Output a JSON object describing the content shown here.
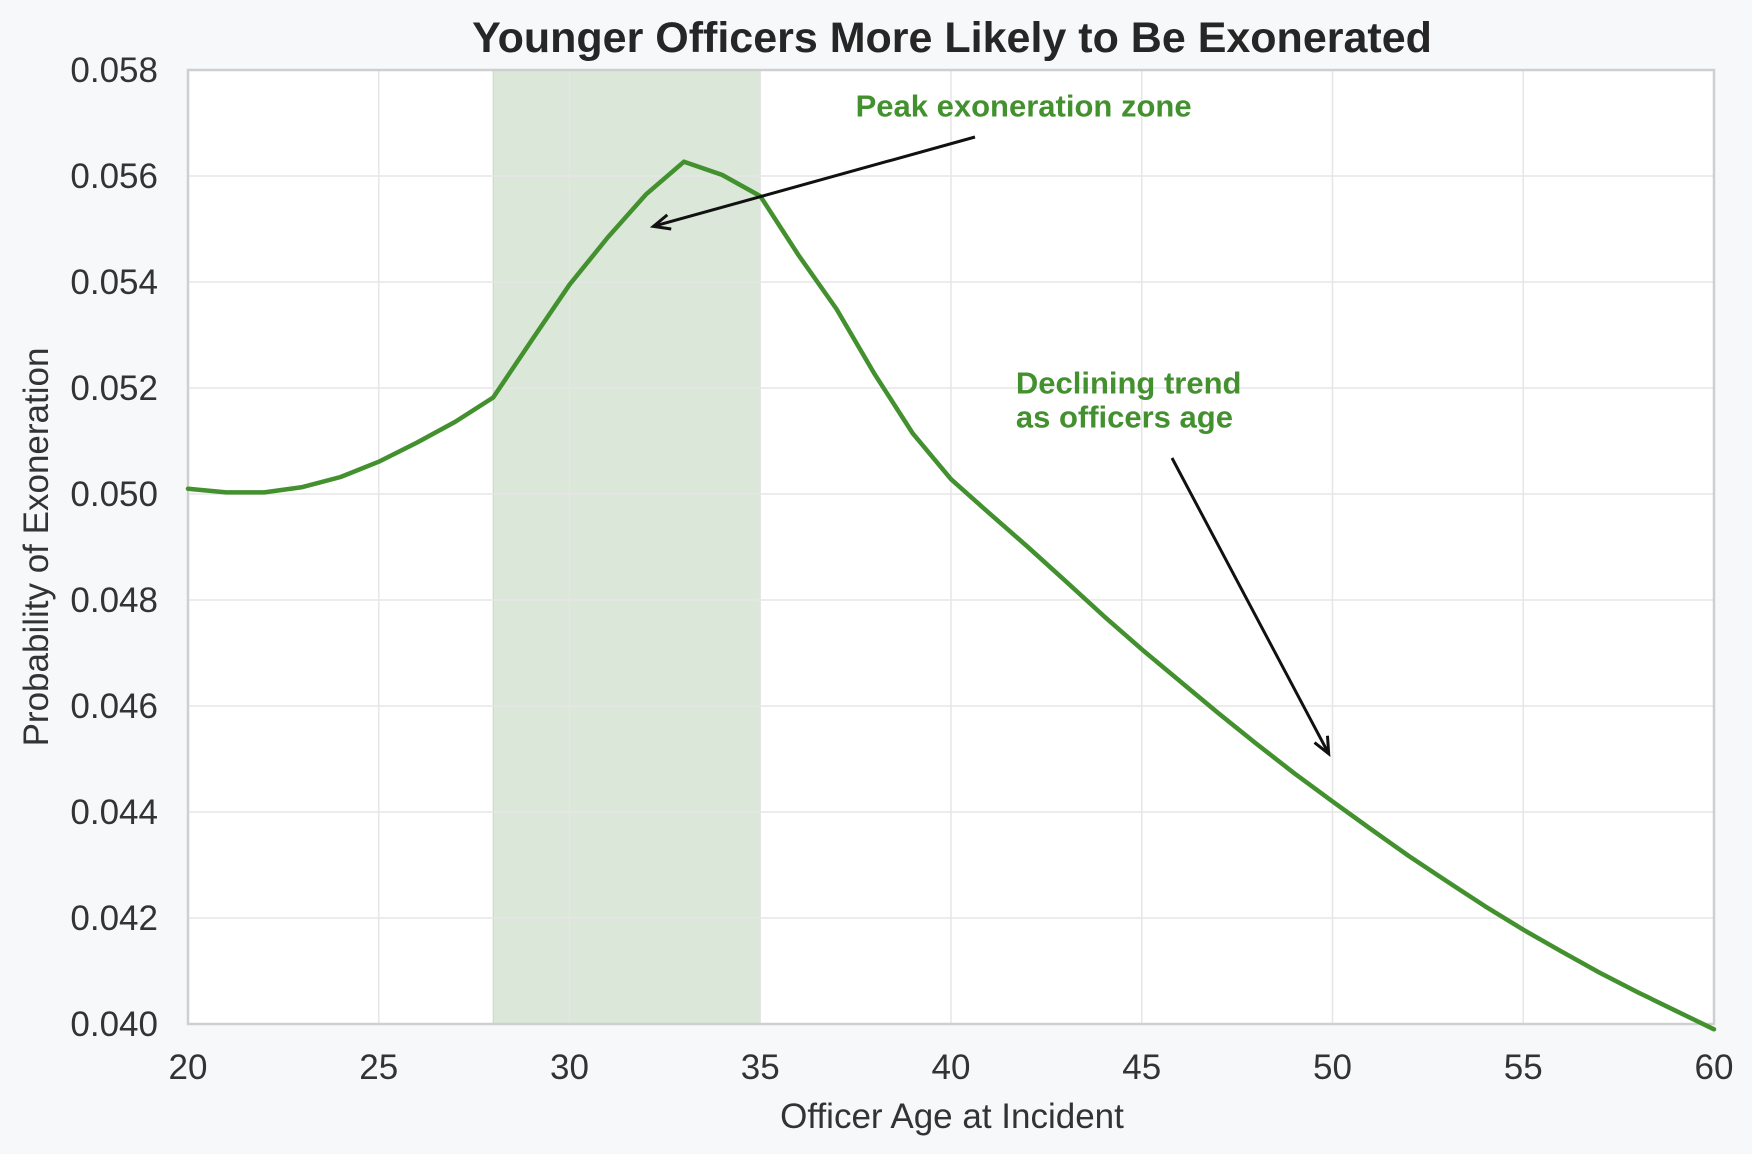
{
  "chart_data": {
    "type": "line",
    "title": "Younger Officers More Likely to Be Exonerated",
    "xlabel": "Officer Age at Incident",
    "ylabel": "Probability of Exoneration",
    "xlim": [
      20,
      60
    ],
    "ylim": [
      0.04,
      0.058
    ],
    "xticks": [
      20,
      25,
      30,
      35,
      40,
      45,
      50,
      55,
      60
    ],
    "xtick_labels": [
      "20",
      "25",
      "30",
      "35",
      "40",
      "45",
      "50",
      "55",
      "60"
    ],
    "yticks": [
      0.04,
      0.042,
      0.044,
      0.046,
      0.048,
      0.05,
      0.052,
      0.054,
      0.056,
      0.058
    ],
    "ytick_labels": [
      "0.040",
      "0.042",
      "0.044",
      "0.046",
      "0.048",
      "0.050",
      "0.052",
      "0.054",
      "0.056",
      "0.058"
    ],
    "grid": true,
    "series": [
      {
        "x": [
          20,
          21,
          22,
          23,
          24,
          25,
          26,
          27,
          28,
          29,
          30,
          31,
          32,
          33,
          34,
          35,
          36,
          37,
          38,
          39,
          40,
          41,
          42,
          43,
          44,
          45,
          46,
          47,
          48,
          49,
          50,
          51,
          52,
          53,
          54,
          55,
          56,
          57,
          58,
          59,
          60
        ],
        "values": [
          0.0501,
          0.05003,
          0.05003,
          0.05013,
          0.05032,
          0.05061,
          0.05097,
          0.05136,
          0.05182,
          0.05289,
          0.05395,
          0.05484,
          0.05565,
          0.05627,
          0.05602,
          0.05562,
          0.05451,
          0.05349,
          0.05226,
          0.05114,
          0.05028,
          0.04964,
          0.04901,
          0.04836,
          0.0477,
          0.04707,
          0.04647,
          0.04587,
          0.04529,
          0.04473,
          0.0442,
          0.04368,
          0.04317,
          0.04269,
          0.04222,
          0.04178,
          0.04137,
          0.04097,
          0.0406,
          0.04025,
          0.0399
        ]
      }
    ],
    "highlight_band": {
      "x_start": 28,
      "x_end": 35
    },
    "annotations": [
      {
        "text_lines": [
          "Peak exoneration zone"
        ],
        "text_at": [
          37.5,
          0.05712
        ],
        "arrow_to": [
          32.2,
          0.05505
        ]
      },
      {
        "text_lines": [
          "Declining trend",
          "as officers age"
        ],
        "text_at": [
          41.7,
          0.0519
        ],
        "arrow_to": [
          49.9,
          0.0451
        ]
      }
    ],
    "colors": {
      "line": "#43902f",
      "band": "#dbe7d8",
      "annotation_text": "#43902f",
      "arrow": "#111111",
      "grid": "#e6e6e6",
      "axes_border": "#cfcfcf",
      "plot_background": "#ffffff",
      "figure_background": "#f7f8fa"
    }
  }
}
